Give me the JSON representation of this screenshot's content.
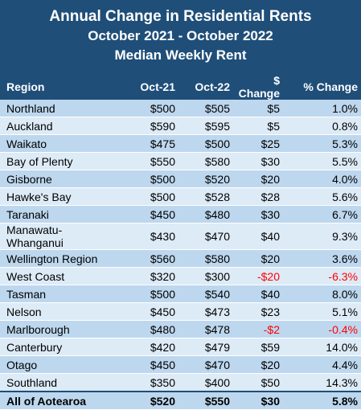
{
  "title": "Annual Change in Residential Rents",
  "subtitle": "October 2021 - October 2022",
  "subtitle2": "Median Weekly Rent",
  "headers": [
    "Region",
    "Oct-21",
    "Oct-22",
    "$ Change",
    "% Change"
  ],
  "rows": [
    [
      "Northland",
      "$500",
      "$505",
      "$5",
      "1.0%"
    ],
    [
      "Auckland",
      "$590",
      "$595",
      "$5",
      "0.8%"
    ],
    [
      "Waikato",
      "$475",
      "$500",
      "$25",
      "5.3%"
    ],
    [
      "Bay of Plenty",
      "$550",
      "$580",
      "$30",
      "5.5%"
    ],
    [
      "Gisborne",
      "$500",
      "$520",
      "$20",
      "4.0%"
    ],
    [
      "Hawke's Bay",
      "$500",
      "$528",
      "$28",
      "5.6%"
    ],
    [
      "Taranaki",
      "$450",
      "$480",
      "$30",
      "6.7%"
    ],
    [
      "Manawatu-Whanganui",
      "$430",
      "$470",
      "$40",
      "9.3%"
    ],
    [
      "Wellington Region",
      "$560",
      "$580",
      "$20",
      "3.6%"
    ],
    [
      "West Coast",
      "$320",
      "$300",
      "-$20",
      "-6.3%"
    ],
    [
      "Tasman",
      "$500",
      "$540",
      "$40",
      "8.0%"
    ],
    [
      "Nelson",
      "$450",
      "$473",
      "$23",
      "5.1%"
    ],
    [
      "Marlborough",
      "$480",
      "$478",
      "-$2",
      "-0.4%"
    ],
    [
      "Canterbury",
      "$420",
      "$479",
      "$59",
      "14.0%"
    ],
    [
      "Otago",
      "$450",
      "$470",
      "$20",
      "4.4%"
    ],
    [
      "Southland",
      "$350",
      "$400",
      "$50",
      "14.3%"
    ]
  ],
  "total": [
    "All of Aotearoa",
    "$520",
    "$550",
    "$30",
    "5.8%"
  ],
  "colors": {
    "header_bg": "#1f4e79",
    "row_dark": "#bdd7ee",
    "row_light": "#ddebf7",
    "negative": "#ff0000"
  }
}
